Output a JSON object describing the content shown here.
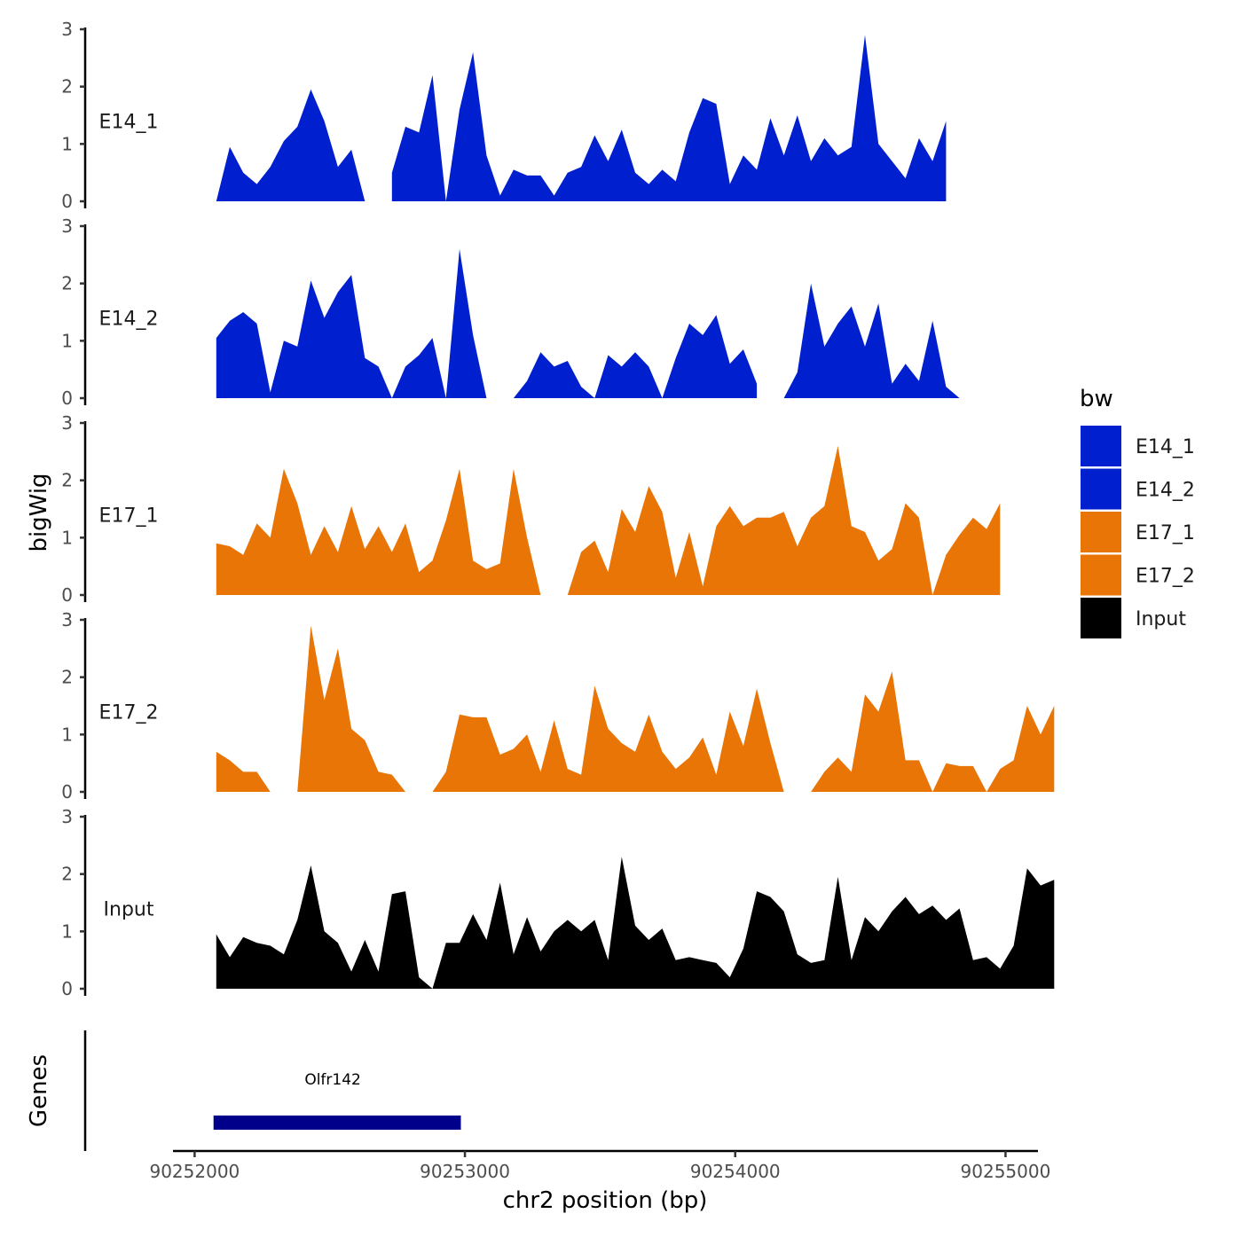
{
  "chart_data": {
    "type": "area",
    "chromosome": "chr2",
    "xlabel": "chr2 position (bp)",
    "ylabel": "bigWig",
    "xlim": [
      90251920,
      90255120
    ],
    "x_ticks": [
      90252000,
      90253000,
      90254000,
      90255000
    ],
    "x_tick_labels": [
      "90252000",
      "90253000",
      "90254000",
      "90255000"
    ],
    "ylim": [
      0,
      3
    ],
    "y_ticks": [
      0,
      1,
      2,
      3
    ],
    "y_tick_labels": [
      "0",
      "1",
      "2",
      "3"
    ],
    "x_start": 90252080,
    "x_step": 50,
    "legend": {
      "title": "bw",
      "position": "right",
      "entries": [
        {
          "name": "E14_1",
          "color": "#0020D0"
        },
        {
          "name": "E14_2",
          "color": "#0020D0"
        },
        {
          "name": "E17_1",
          "color": "#E87506"
        },
        {
          "name": "E17_2",
          "color": "#E87506"
        },
        {
          "name": "Input",
          "color": "#000000"
        }
      ]
    },
    "series": [
      {
        "name": "E14_1",
        "color": "#0020D0",
        "values": [
          0.0,
          0.95,
          0.5,
          0.3,
          0.6,
          1.05,
          1.3,
          1.95,
          1.4,
          0.6,
          0.9,
          0.0,
          null,
          0.5,
          1.3,
          1.2,
          2.2,
          0.0,
          1.6,
          2.6,
          0.8,
          0.1,
          0.55,
          0.45,
          0.45,
          0.1,
          0.5,
          0.6,
          1.15,
          0.7,
          1.25,
          0.5,
          0.3,
          0.55,
          0.35,
          1.2,
          1.8,
          1.7,
          0.3,
          0.8,
          0.55,
          1.45,
          0.8,
          1.5,
          0.7,
          1.1,
          0.8,
          0.95,
          2.9,
          1.0,
          0.7,
          0.4,
          1.1,
          0.7,
          1.4
        ]
      },
      {
        "name": "E14_2",
        "color": "#0020D0",
        "values": [
          1.05,
          1.35,
          1.5,
          1.3,
          0.1,
          1.0,
          0.9,
          2.05,
          1.4,
          1.85,
          2.15,
          0.7,
          0.55,
          0.0,
          0.55,
          0.75,
          1.05,
          0.0,
          2.6,
          1.1,
          0.0,
          null,
          0.0,
          0.3,
          0.8,
          0.55,
          0.65,
          0.2,
          0.0,
          0.75,
          0.55,
          0.8,
          0.55,
          0.0,
          0.7,
          1.3,
          1.1,
          1.45,
          0.6,
          0.85,
          0.25,
          null,
          0.0,
          0.45,
          2.0,
          0.9,
          1.3,
          1.6,
          0.9,
          1.65,
          0.25,
          0.6,
          0.3,
          1.35,
          0.2,
          0.0
        ]
      },
      {
        "name": "E17_1",
        "color": "#E87506",
        "values": [
          0.9,
          0.85,
          0.7,
          1.25,
          1.0,
          2.2,
          1.6,
          0.7,
          1.2,
          0.75,
          1.55,
          0.8,
          1.2,
          0.75,
          1.25,
          0.4,
          0.6,
          1.3,
          2.2,
          0.6,
          0.45,
          0.55,
          2.2,
          1.0,
          0.0,
          null,
          0.0,
          0.75,
          0.95,
          0.4,
          1.5,
          1.1,
          1.9,
          1.45,
          0.3,
          1.1,
          0.15,
          1.2,
          1.55,
          1.2,
          1.35,
          1.35,
          1.45,
          0.85,
          1.35,
          1.55,
          2.6,
          1.2,
          1.1,
          0.6,
          0.8,
          1.6,
          1.35,
          0.0,
          0.7,
          1.05,
          1.35,
          1.15,
          1.6
        ]
      },
      {
        "name": "E17_2",
        "color": "#E87506",
        "values": [
          0.7,
          0.55,
          0.35,
          0.35,
          0.0,
          null,
          0.0,
          2.9,
          1.6,
          2.5,
          1.1,
          0.9,
          0.35,
          0.3,
          0.0,
          null,
          0.0,
          0.35,
          1.35,
          1.3,
          1.3,
          0.65,
          0.75,
          1.0,
          0.35,
          1.25,
          0.4,
          0.3,
          1.85,
          1.1,
          0.85,
          0.7,
          1.35,
          0.7,
          0.4,
          0.6,
          0.95,
          0.3,
          1.4,
          0.8,
          1.8,
          0.85,
          0.0,
          null,
          0.0,
          0.35,
          0.6,
          0.35,
          1.7,
          1.4,
          2.1,
          0.55,
          0.55,
          0.0,
          0.5,
          0.45,
          0.45,
          0.0,
          0.4,
          0.55,
          1.5,
          1.0,
          1.5
        ]
      },
      {
        "name": "Input",
        "color": "#000000",
        "values": [
          0.95,
          0.55,
          0.9,
          0.8,
          0.75,
          0.6,
          1.2,
          2.15,
          1.0,
          0.8,
          0.3,
          0.85,
          0.3,
          1.65,
          1.7,
          0.2,
          0.0,
          0.8,
          0.8,
          1.3,
          0.85,
          1.85,
          0.6,
          1.25,
          0.65,
          1.0,
          1.2,
          1.0,
          1.2,
          0.5,
          2.3,
          1.1,
          0.85,
          1.05,
          0.5,
          0.55,
          0.5,
          0.45,
          0.2,
          0.7,
          1.7,
          1.6,
          1.35,
          0.6,
          0.45,
          0.5,
          1.95,
          0.5,
          1.25,
          1.0,
          1.35,
          1.6,
          1.3,
          1.45,
          1.2,
          1.4,
          0.5,
          0.55,
          0.35,
          0.75,
          2.1,
          1.8,
          1.9
        ]
      }
    ],
    "genes": {
      "panel_label": "Genes",
      "items": [
        {
          "name": "Olfr142",
          "start": 90252070,
          "end": 90252985,
          "color": "#00008B"
        }
      ]
    }
  }
}
